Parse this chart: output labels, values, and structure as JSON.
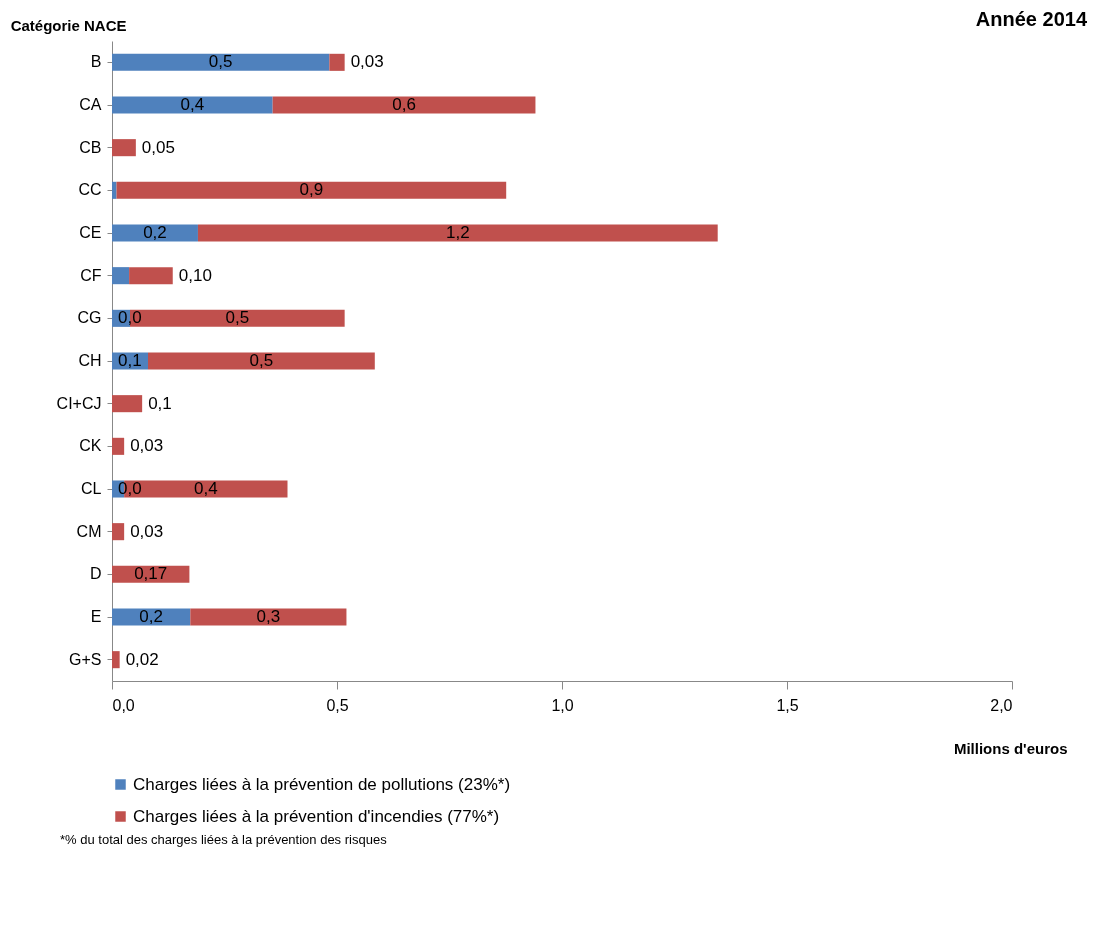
{
  "chart_data": {
    "type": "bar",
    "orientation": "horizontal",
    "stacked": true,
    "title": "Année 2014",
    "ylabel": "Catégorie NACE",
    "xlabel": "Millions d'euros",
    "categories": [
      "B",
      "CA",
      "CB",
      "CC",
      "CE",
      "CF",
      "CG",
      "CH",
      "CI+CJ",
      "CK",
      "CL",
      "CM",
      "D",
      "E",
      "G+S"
    ],
    "series": [
      {
        "name": "Charges liées à la prévention de pollutions (23%*)",
        "color": "#4f81bd",
        "values": [
          0.483,
          0.357,
          null,
          0.01,
          0.191,
          0.038,
          0.04,
          0.08,
          null,
          null,
          0.027,
          null,
          null,
          0.174,
          null
        ],
        "value_labels": [
          "0,5",
          "0,4",
          null,
          null,
          "0,2",
          null,
          "0,0",
          "0,1",
          null,
          null,
          "0,0",
          null,
          null,
          "0,2",
          null
        ]
      },
      {
        "name": "Charges liées à la prévention d'incendies (77%*)",
        "color": "#c0504d",
        "values": [
          0.034,
          0.584,
          0.053,
          0.866,
          1.155,
          0.097,
          0.477,
          0.504,
          0.067,
          0.027,
          0.363,
          0.027,
          0.172,
          0.347,
          0.017
        ],
        "value_labels": [
          "0,03",
          "0,6",
          "0,05",
          "0,9",
          "1,2",
          "0,10",
          "0,5",
          "0,5",
          "0,1",
          "0,03",
          "0,4",
          "0,03",
          "0,17",
          "0,3",
          "0,02"
        ]
      }
    ],
    "xlim": [
      0,
      2
    ],
    "xticks": [
      {
        "value": 0,
        "label": "0,0"
      },
      {
        "value": 0.5,
        "label": "0,5"
      },
      {
        "value": 1,
        "label": "1,0"
      },
      {
        "value": 1.5,
        "label": "1,5"
      },
      {
        "value": 2,
        "label": "2,0"
      }
    ],
    "legend": "bottom",
    "annotations": [
      "*% du total des charges liées à la prévention des risques"
    ]
  }
}
